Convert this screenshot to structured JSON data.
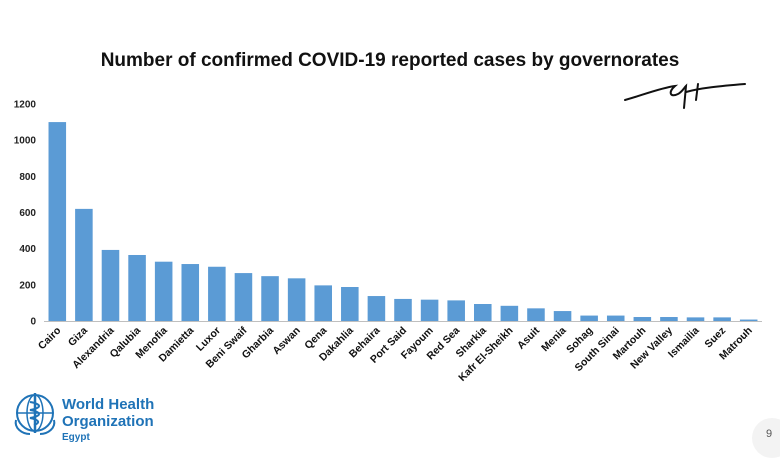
{
  "chart_data": {
    "type": "bar",
    "title": "Number of confirmed COVID-19 reported cases by governorates",
    "xlabel": "",
    "ylabel": "",
    "ylim": [
      0,
      1200
    ],
    "yticks": [
      0,
      200,
      400,
      600,
      800,
      1000,
      1200
    ],
    "grid": false,
    "color": "#5b9bd5",
    "categories": [
      "Cairo",
      "Giza",
      "Alexandria",
      "Qalubia",
      "Menofia",
      "Damietta",
      "Luxor",
      "Beni Swaif",
      "Gharbia",
      "Aswan",
      "Qena",
      "Dakahlia",
      "Behaira",
      "Port Said",
      "Fayoum",
      "Red Sea",
      "Sharkia",
      "Kafr El-Sheikh",
      "Asuit",
      "Menia",
      "Sohag",
      "South Sinai",
      "Martouh",
      "New Valley",
      "Ismailia",
      "Suez",
      "Matrouh"
    ],
    "values": [
      1100,
      620,
      393,
      365,
      328,
      315,
      300,
      265,
      248,
      236,
      197,
      188,
      138,
      122,
      118,
      114,
      94,
      84,
      70,
      55,
      30,
      30,
      22,
      22,
      20,
      20,
      8
    ]
  },
  "logo": {
    "org_line1": "World Health",
    "org_line2": "Organization",
    "region": "Egypt",
    "icon": "who-emblem-icon"
  },
  "page_number": "9"
}
